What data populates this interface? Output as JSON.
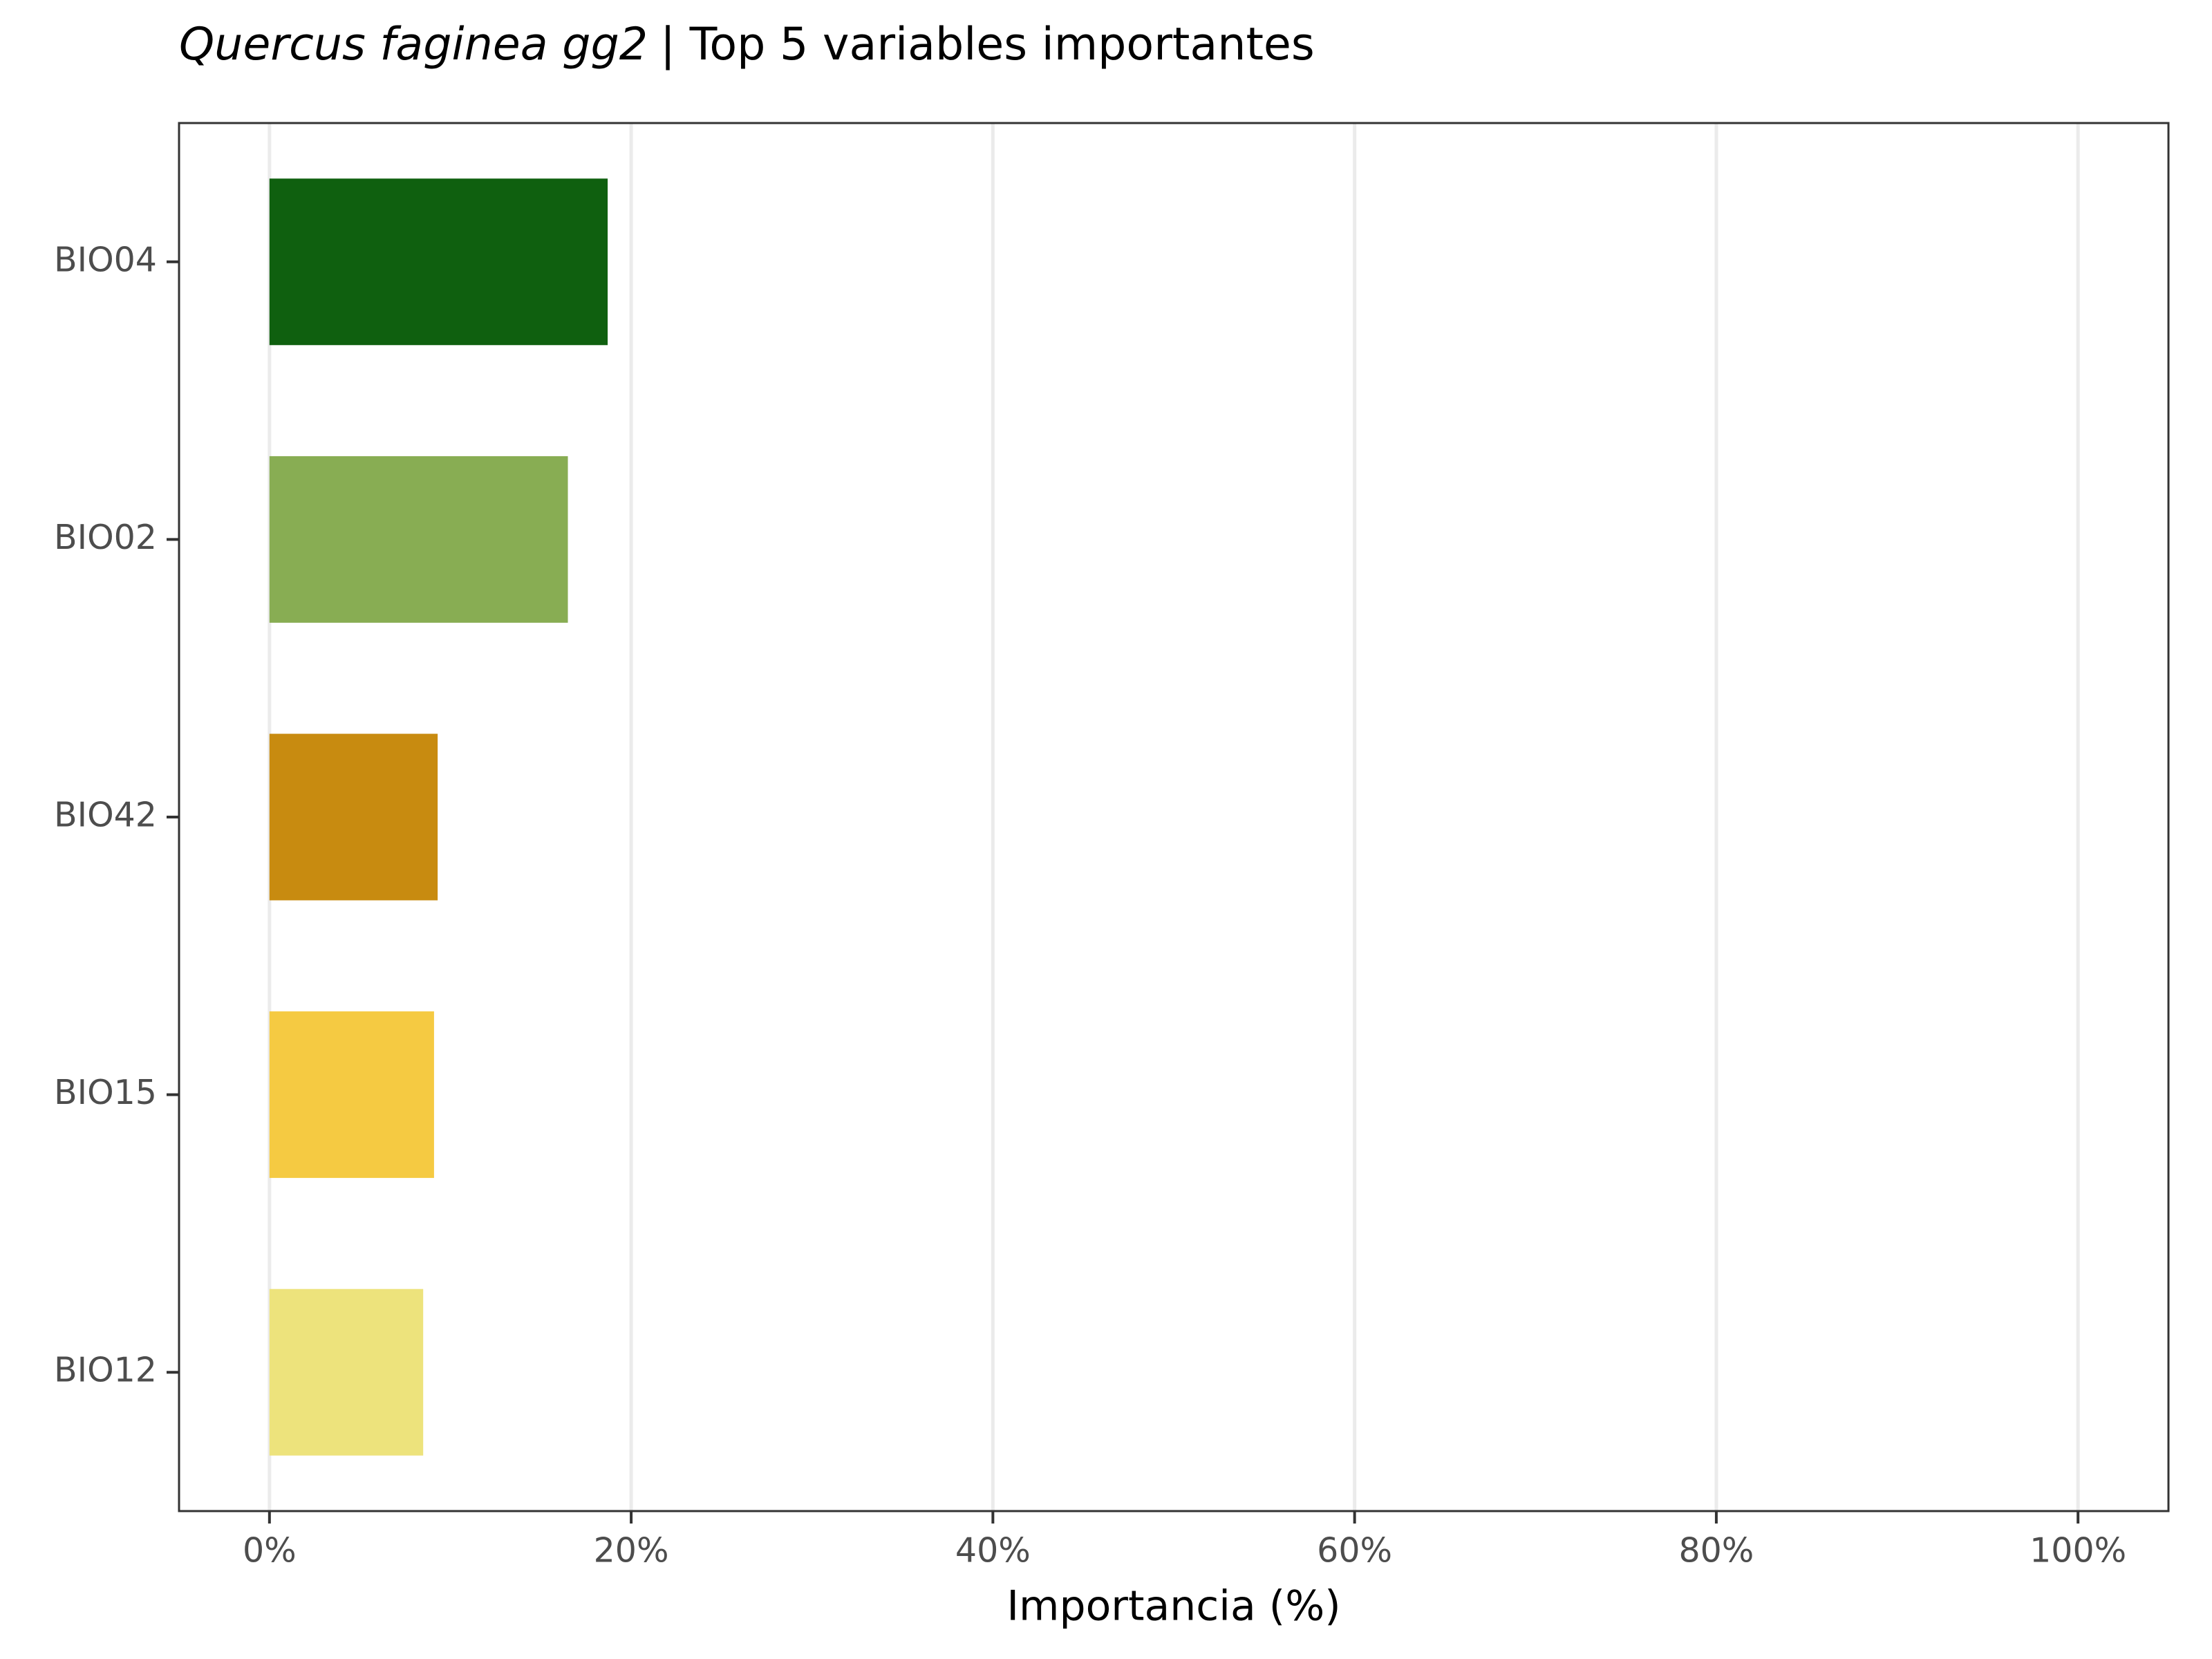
{
  "chart_data": {
    "type": "barh",
    "title_species": "Quercus faginea gg2",
    "title": "| Top 5 variables importantes",
    "x_label": "Importancia (%)",
    "categories": [
      "BIO04",
      "BIO02",
      "BIO42",
      "BIO15",
      "BIO12"
    ],
    "values": [
      18.7,
      16.5,
      9.3,
      9.1,
      8.5
    ],
    "colors": [
      "#0f600f",
      "#88ad53",
      "#c88b10",
      "#f5ca42",
      "#ede37c"
    ],
    "xlim": [
      -5,
      105
    ],
    "xticks": [
      {
        "value": 0,
        "label": "0%"
      },
      {
        "value": 20,
        "label": "20%"
      },
      {
        "value": 40,
        "label": "40%"
      },
      {
        "value": 60,
        "label": "60%"
      },
      {
        "value": 80,
        "label": "80%"
      },
      {
        "value": 100,
        "label": "100%"
      }
    ],
    "grid": true
  }
}
